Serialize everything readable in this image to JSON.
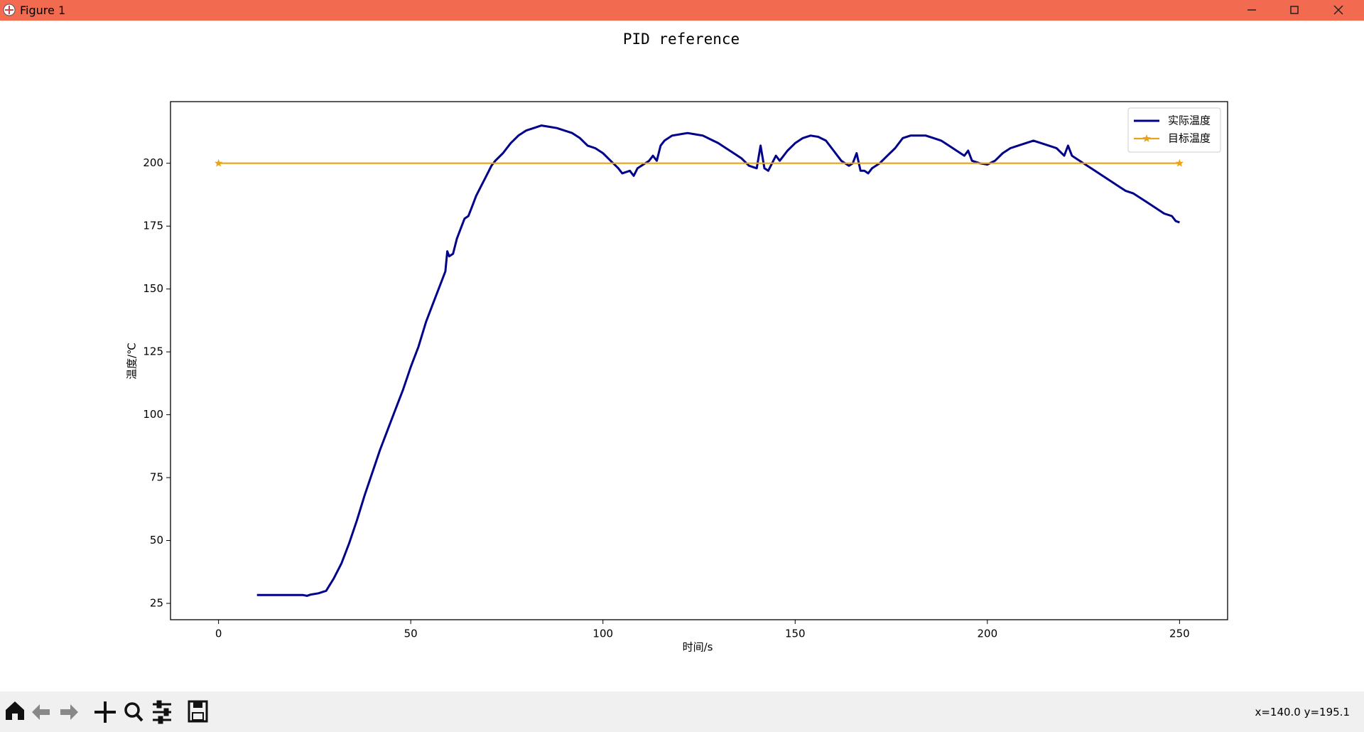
{
  "window": {
    "title": "Figure 1",
    "status": "x=140.0 y=195.1"
  },
  "chart_data": {
    "type": "line",
    "title": "PID reference",
    "xlabel": "时间/s",
    "ylabel": "温度/℃",
    "xlim": [
      -12.5,
      262.5
    ],
    "xticks": [
      0,
      50,
      100,
      150,
      200,
      250
    ],
    "ylim": [
      18.5,
      224.5
    ],
    "yticks": [
      25,
      50,
      75,
      100,
      125,
      150,
      175,
      200
    ],
    "grid": false,
    "legend": "upper right",
    "series": [
      {
        "name": "实际温度",
        "color": "#00008b",
        "marker": null,
        "x": [
          10,
          12,
          14,
          16,
          18,
          20,
          22,
          23,
          24,
          26,
          28,
          30,
          32,
          34,
          36,
          38,
          40,
          42,
          44,
          46,
          48,
          50,
          52,
          54,
          56,
          58,
          59,
          59.5,
          60,
          61,
          62,
          63,
          64,
          65,
          66,
          67,
          68,
          69,
          70,
          71,
          72,
          74,
          76,
          78,
          80,
          82,
          84,
          86,
          88,
          90,
          92,
          94,
          96,
          98,
          100,
          102,
          104,
          105,
          107,
          108,
          109,
          110,
          112,
          113,
          114,
          115,
          116,
          118,
          120,
          122,
          124,
          126,
          128,
          130,
          132,
          134,
          136,
          138,
          140,
          141,
          142,
          143,
          144,
          145,
          146,
          148,
          150,
          152,
          154,
          156,
          158,
          160,
          162,
          164,
          165,
          166,
          167,
          168,
          169,
          170,
          172,
          174,
          176,
          178,
          180,
          182,
          184,
          186,
          188,
          190,
          192,
          194,
          195,
          196,
          198,
          200,
          202,
          204,
          206,
          208,
          210,
          212,
          214,
          216,
          218,
          220,
          221,
          222,
          224,
          226,
          228,
          230,
          232,
          234,
          236,
          238,
          240,
          242,
          244,
          246,
          248,
          249,
          250
        ],
        "values": [
          28.3,
          28.3,
          28.3,
          28.3,
          28.3,
          28.3,
          28.3,
          28,
          28.5,
          29,
          30,
          35,
          41,
          49,
          58,
          68,
          77,
          86,
          94,
          102,
          110,
          119,
          127,
          137,
          145,
          153,
          157,
          165,
          163,
          164,
          170,
          174,
          178,
          179,
          183,
          187,
          190,
          193,
          196,
          199,
          201,
          204,
          208,
          211,
          213,
          214,
          215,
          214.5,
          214,
          213,
          212,
          210,
          207,
          206,
          204,
          201,
          198,
          196,
          197,
          195,
          198,
          199,
          201,
          203,
          201,
          207,
          209,
          211,
          211.5,
          212,
          211.5,
          211,
          209.5,
          208,
          206,
          204,
          202,
          199,
          198,
          207,
          198,
          197,
          200,
          203,
          201,
          205,
          208,
          210,
          211,
          210.5,
          209,
          205,
          201,
          199,
          200,
          204,
          197,
          197,
          196,
          198,
          200,
          203,
          206,
          210,
          211,
          211,
          211,
          210,
          209,
          207,
          205,
          203,
          205,
          201,
          200,
          199.5,
          201,
          204,
          206,
          207,
          208,
          209,
          208,
          207,
          206,
          203,
          207,
          203,
          201,
          199,
          197,
          195,
          193,
          191,
          189,
          188,
          186,
          184,
          182,
          180,
          179,
          177,
          176.5
        ]
      },
      {
        "name": "目标温度",
        "color": "#e8a317",
        "marker": "star",
        "x": [
          0,
          250
        ],
        "values": [
          200,
          200
        ]
      }
    ]
  }
}
